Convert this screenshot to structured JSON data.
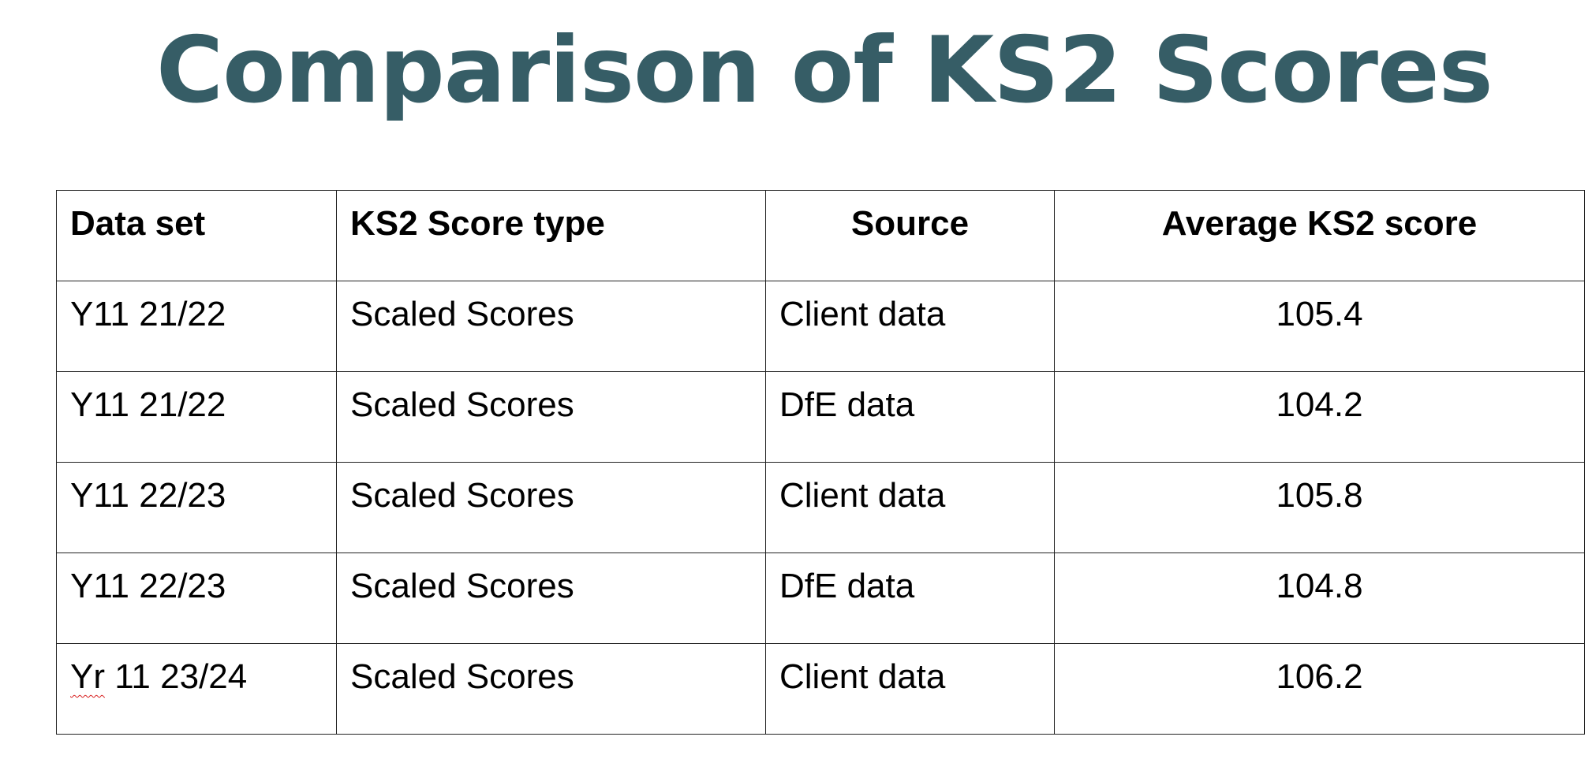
{
  "title": "Comparison of KS2 Scores",
  "table": {
    "headers": {
      "data_set": "Data set",
      "score_type": "KS2 Score type",
      "source": "Source",
      "average": "Average KS2 score"
    },
    "rows": [
      {
        "data_set": "Y11 21/22",
        "score_type": "Scaled Scores",
        "source": "Client data",
        "average": "105.4"
      },
      {
        "data_set": "Y11 21/22",
        "score_type": "Scaled Scores",
        "source": "DfE data",
        "average": "104.2"
      },
      {
        "data_set": "Y11 22/23",
        "score_type": "Scaled Scores",
        "source": "Client data",
        "average": "105.8"
      },
      {
        "data_set": "Y11 22/23",
        "score_type": "Scaled Scores",
        "source": "DfE data",
        "average": "104.8"
      },
      {
        "data_set_prefix": "Yr",
        "data_set_suffix": " 11 23/24",
        "score_type": "Scaled Scores",
        "source": "Client data",
        "average": "106.2"
      }
    ]
  },
  "colors": {
    "title": "#365d66",
    "border": "#222222",
    "spellcheck_underline": "#d81e1e"
  }
}
